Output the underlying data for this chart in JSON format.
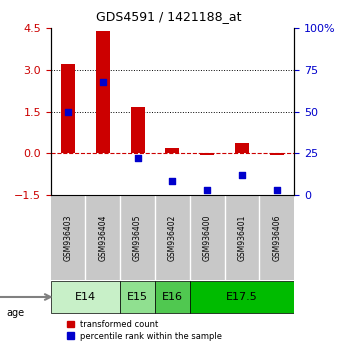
{
  "title": "GDS4591 / 1421188_at",
  "samples": [
    "GSM936403",
    "GSM936404",
    "GSM936405",
    "GSM936402",
    "GSM936400",
    "GSM936401",
    "GSM936406"
  ],
  "transformed_count": [
    3.2,
    4.4,
    1.65,
    0.2,
    -0.05,
    0.35,
    -0.08
  ],
  "percentile_rank": [
    50,
    68,
    22,
    8,
    3,
    12,
    3
  ],
  "age_groups": [
    {
      "label": "E14",
      "start": 0,
      "end": 2,
      "color": "#c8f0c8"
    },
    {
      "label": "E15",
      "start": 2,
      "end": 3,
      "color": "#90e090"
    },
    {
      "label": "E16",
      "start": 3,
      "end": 4,
      "color": "#50c850"
    },
    {
      "label": "E17.5",
      "start": 4,
      "end": 7,
      "color": "#00bb00"
    }
  ],
  "ylim_left": [
    -1.5,
    4.5
  ],
  "ylim_right": [
    0,
    100
  ],
  "yticks_left": [
    -1.5,
    0,
    1.5,
    3,
    4.5
  ],
  "yticks_right": [
    0,
    25,
    50,
    75,
    100
  ],
  "hlines": [
    1.5,
    3.0
  ],
  "bar_color": "#cc0000",
  "dot_color": "#0000cc",
  "background_color": "#ffffff",
  "legend_bar_label": "transformed count",
  "legend_dot_label": "percentile rank within the sample"
}
